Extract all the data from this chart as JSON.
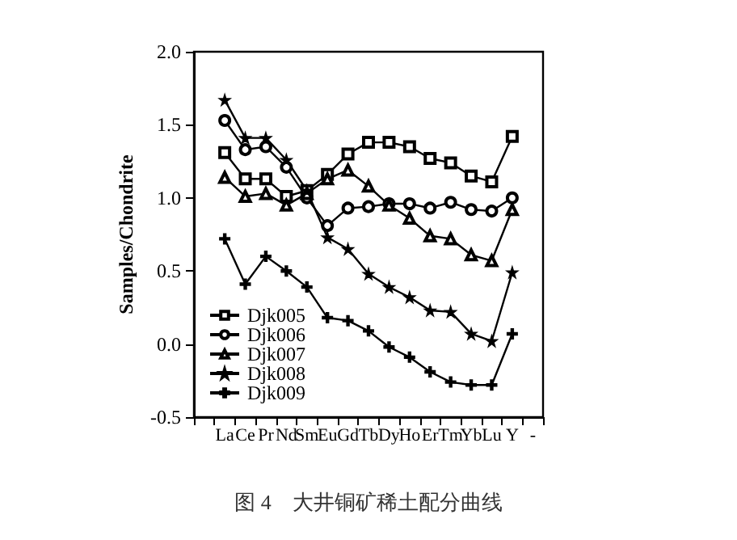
{
  "chart_data": {
    "type": "line",
    "title": "图 4　大井铜矿稀土配分曲线",
    "ylabel": "Samples/Chondrite",
    "categories": [
      null,
      "La",
      "Ce",
      "Pr",
      "Nd",
      "Sm",
      "Eu",
      "Gd",
      "Tb",
      "Dy",
      "Ho",
      "Er",
      "Tm",
      "Yb",
      "Lu",
      "Y",
      "-"
    ],
    "series": [
      {
        "name": "Djk005",
        "color": "#000000",
        "marker": "square",
        "values": [
          null,
          1.31,
          1.13,
          1.13,
          1.01,
          1.05,
          1.16,
          1.3,
          1.38,
          1.38,
          1.35,
          1.27,
          1.24,
          1.15,
          1.11,
          1.42,
          null
        ]
      },
      {
        "name": "Djk006",
        "color": "#000000",
        "marker": "circle",
        "values": [
          null,
          1.53,
          1.33,
          1.35,
          1.21,
          1.0,
          0.81,
          0.93,
          0.94,
          0.96,
          0.96,
          0.93,
          0.97,
          0.92,
          0.91,
          1.0,
          null
        ]
      },
      {
        "name": "Djk007",
        "color": "#000000",
        "marker": "triangle",
        "values": [
          null,
          1.14,
          1.01,
          1.03,
          0.95,
          1.03,
          1.13,
          1.19,
          1.08,
          0.95,
          0.86,
          0.74,
          0.72,
          0.61,
          0.57,
          0.92,
          null
        ]
      },
      {
        "name": "Djk008",
        "color": "#000000",
        "marker": "star",
        "values": [
          null,
          1.67,
          1.41,
          1.41,
          1.26,
          1.05,
          0.73,
          0.65,
          0.48,
          0.39,
          0.32,
          0.23,
          0.22,
          0.07,
          0.02,
          0.49,
          null
        ]
      },
      {
        "name": "Djk009",
        "color": "#000000",
        "marker": "cross",
        "values": [
          null,
          0.72,
          0.41,
          0.6,
          0.5,
          0.39,
          0.18,
          0.16,
          0.09,
          -0.02,
          -0.09,
          -0.19,
          -0.26,
          -0.28,
          -0.28,
          0.07,
          null
        ]
      }
    ],
    "ylim": [
      -0.5,
      2.0
    ],
    "yticks": [
      -0.5,
      {
        "value": 0,
        "label": "0.0"
      },
      0.5,
      {
        "value": 1,
        "label": "1.0"
      },
      1.5,
      {
        "value": 2,
        "label": "2.0"
      }
    ],
    "grid": false,
    "legend": "bottom left",
    "line_style": "solid"
  }
}
